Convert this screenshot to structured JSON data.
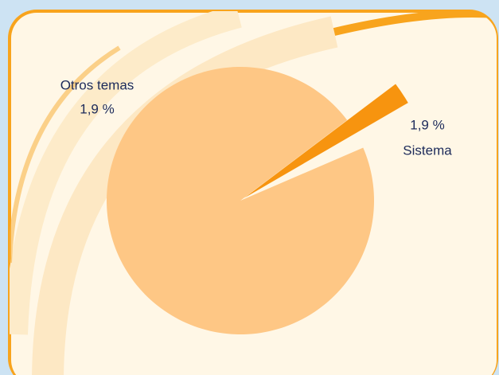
{
  "chart_data": {
    "type": "pie",
    "categories": [
      "Sistema",
      "Otros temas",
      null
    ],
    "values": [
      1.9,
      1.9,
      96.2
    ],
    "value_labels": [
      "1,9 %",
      "1,9 %",
      null
    ],
    "colors": [
      "#f7940f",
      "#fff7e6",
      "#fec785"
    ],
    "explode": [
      true,
      false,
      false
    ]
  }
}
